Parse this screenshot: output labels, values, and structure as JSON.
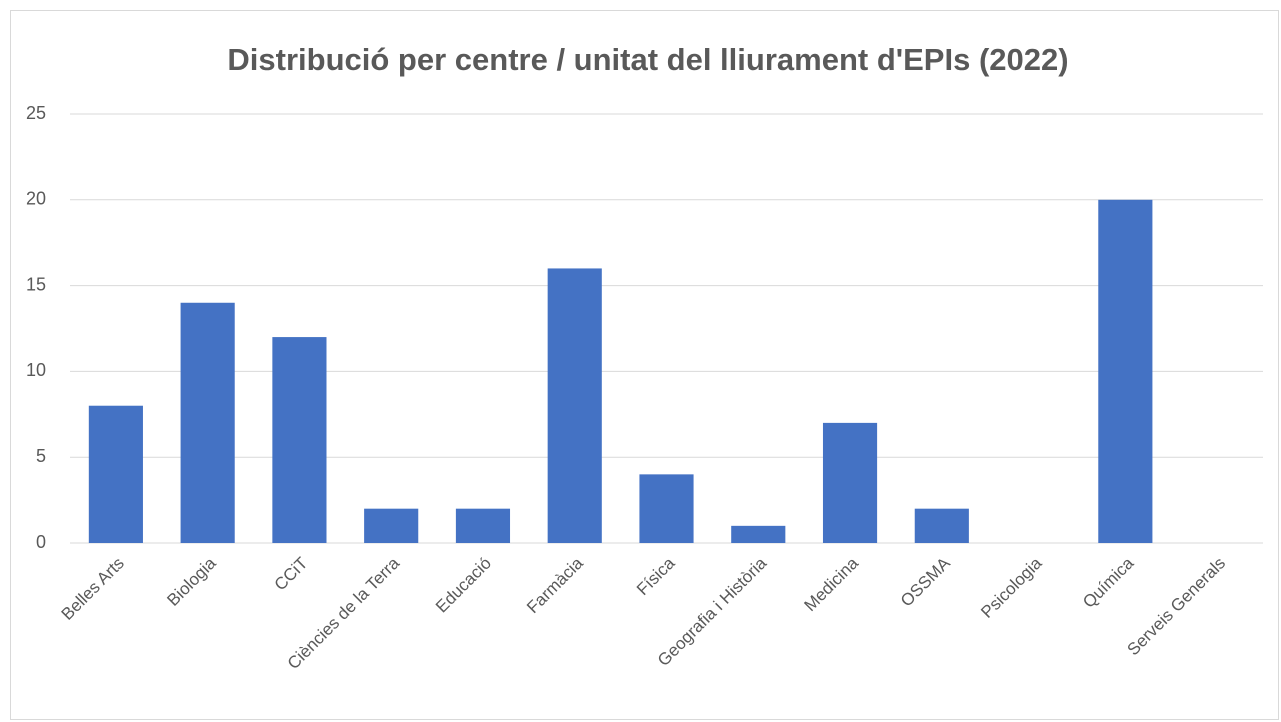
{
  "chart_data": {
    "type": "bar",
    "title": "Distribució per centre / unitat del lliurament d'EPIs (2022)",
    "categories": [
      "Belles Arts",
      "Biologia",
      "CCiT",
      "Ciències de la Terra",
      "Educació",
      "Farmàcia",
      "Física",
      "Geografia i Història",
      "Medicina",
      "OSSMA",
      "Psicologia",
      "Química",
      "Serveis Generals"
    ],
    "values": [
      8,
      14,
      12,
      2,
      2,
      16,
      4,
      1,
      7,
      2,
      0,
      20,
      0
    ],
    "color": "#4472c4",
    "ylim": [
      0,
      25
    ],
    "yticks": [
      0,
      5,
      10,
      15,
      20,
      25
    ],
    "grid": true
  }
}
